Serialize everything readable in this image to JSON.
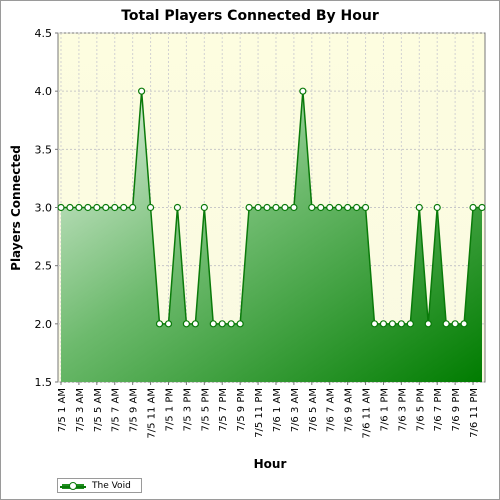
{
  "chart_data": {
    "type": "area",
    "title": "Total Players Connected By Hour",
    "xlabel": "Hour",
    "ylabel": "Players Connected",
    "ylim": [
      1.5,
      4.5
    ],
    "yticks": [
      "1.5",
      "2.0",
      "2.5",
      "3.0",
      "3.5",
      "4.0",
      "4.5"
    ],
    "grid": true,
    "legend_position": "bottom-left",
    "x": [
      "7/5 1 AM",
      "7/5 2 AM",
      "7/5 3 AM",
      "7/5 4 AM",
      "7/5 5 AM",
      "7/5 6 AM",
      "7/5 7 AM",
      "7/5 8 AM",
      "7/5 9 AM",
      "7/5 10 AM",
      "7/5 11 AM",
      "7/5 12 PM",
      "7/5 1 PM",
      "7/5 2 PM",
      "7/5 3 PM",
      "7/5 4 PM",
      "7/5 5 PM",
      "7/5 6 PM",
      "7/5 7 PM",
      "7/5 8 PM",
      "7/5 9 PM",
      "7/5 10 PM",
      "7/5 11 PM",
      "7/6 12 AM",
      "7/6 1 AM",
      "7/6 2 AM",
      "7/6 3 AM",
      "7/6 4 AM",
      "7/6 5 AM",
      "7/6 6 AM",
      "7/6 7 AM",
      "7/6 8 AM",
      "7/6 9 AM",
      "7/6 10 AM",
      "7/6 11 AM",
      "7/6 12 PM",
      "7/6 1 PM",
      "7/6 2 PM",
      "7/6 3 PM",
      "7/6 4 PM",
      "7/6 5 PM",
      "7/6 6 PM",
      "7/6 7 PM",
      "7/6 8 PM",
      "7/6 9 PM",
      "7/6 10 PM",
      "7/6 11 PM",
      "7/7 12 AM"
    ],
    "xtick_labels": [
      "7/5 1 AM",
      "7/5 3 AM",
      "7/5 5 AM",
      "7/5 7 AM",
      "7/5 9 AM",
      "7/5 11 AM",
      "7/5 1 PM",
      "7/5 3 PM",
      "7/5 5 PM",
      "7/5 7 PM",
      "7/5 9 PM",
      "7/5 11 PM",
      "7/6 1 AM",
      "7/6 3 AM",
      "7/6 5 AM",
      "7/6 7 AM",
      "7/6 9 AM",
      "7/6 11 AM",
      "7/6 1 PM",
      "7/6 3 PM",
      "7/6 5 PM",
      "7/6 7 PM",
      "7/6 9 PM",
      "7/6 11 PM"
    ],
    "series": [
      {
        "name": "The Void",
        "color": "#0a7a0a",
        "values": [
          3,
          3,
          3,
          3,
          3,
          3,
          3,
          3,
          3,
          4,
          3,
          2,
          2,
          3,
          2,
          2,
          3,
          2,
          2,
          2,
          2,
          3,
          3,
          3,
          3,
          3,
          3,
          4,
          3,
          3,
          3,
          3,
          3,
          3,
          3,
          2,
          2,
          2,
          2,
          2,
          3,
          2,
          3,
          2,
          2,
          2,
          3,
          3
        ]
      }
    ]
  }
}
